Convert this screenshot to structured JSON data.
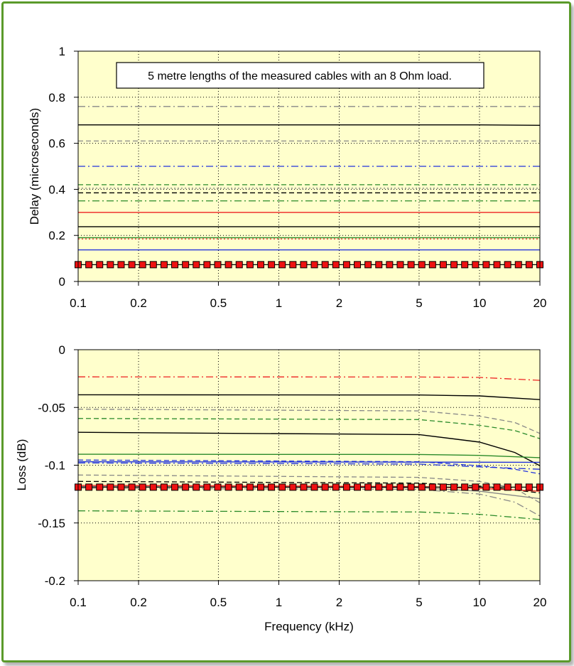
{
  "chart_data": [
    {
      "type": "line",
      "ylabel": "Delay (microseconds)",
      "xlabel": "",
      "x_scale": "log",
      "xlim": [
        0.1,
        20
      ],
      "ylim": [
        0,
        1
      ],
      "x_ticks": [
        "0.1",
        "0.2",
        "0.5",
        "1",
        "2",
        "5",
        "10",
        "20"
      ],
      "y_ticks": [
        "0",
        "0.2",
        "0.4",
        "0.6",
        "0.8",
        "1"
      ],
      "grid": true,
      "annotation": "5 metre lengths of the measured cables with an 8 Ohm load.",
      "series": [
        {
          "color": "#888888",
          "style": "dashdot",
          "values": [
            [
              0.1,
              0.76
            ],
            [
              20,
              0.76
            ]
          ]
        },
        {
          "color": "#000000",
          "style": "solid",
          "values": [
            [
              0.1,
              0.68
            ],
            [
              10,
              0.68
            ],
            [
              20,
              0.678
            ]
          ]
        },
        {
          "color": "#888888",
          "style": "dashed",
          "values": [
            [
              0.1,
              0.61
            ],
            [
              20,
              0.61
            ]
          ]
        },
        {
          "color": "#2233dd",
          "style": "dashdot",
          "values": [
            [
              0.1,
              0.5
            ],
            [
              20,
              0.5
            ]
          ]
        },
        {
          "color": "#2a8a2a",
          "style": "dashed",
          "values": [
            [
              0.1,
              0.42
            ],
            [
              20,
              0.42
            ]
          ]
        },
        {
          "color": "#888888",
          "style": "dotted",
          "values": [
            [
              0.1,
              0.405
            ],
            [
              20,
              0.405
            ]
          ]
        },
        {
          "color": "#000000",
          "style": "dashed",
          "values": [
            [
              0.1,
              0.385
            ],
            [
              20,
              0.385
            ]
          ]
        },
        {
          "color": "#2a8a2a",
          "style": "dashdot",
          "values": [
            [
              0.1,
              0.35
            ],
            [
              20,
              0.35
            ]
          ]
        },
        {
          "color": "#ee2222",
          "style": "solid",
          "values": [
            [
              0.1,
              0.3
            ],
            [
              20,
              0.3
            ]
          ]
        },
        {
          "color": "#000000",
          "style": "solid",
          "values": [
            [
              0.1,
              0.238
            ],
            [
              20,
              0.238
            ]
          ]
        },
        {
          "color": "#2a8a2a",
          "style": "solid",
          "values": [
            [
              0.1,
              0.19
            ],
            [
              20,
              0.19
            ]
          ]
        },
        {
          "color": "#ee2222",
          "style": "dotted",
          "values": [
            [
              0.1,
              0.185
            ],
            [
              20,
              0.185
            ]
          ]
        },
        {
          "color": "#2233dd",
          "style": "solid",
          "values": [
            [
              0.1,
              0.137
            ],
            [
              20,
              0.137
            ]
          ]
        },
        {
          "color": "#ee1111",
          "style": "markers",
          "values": [
            [
              0.1,
              0.073
            ],
            [
              20,
              0.073
            ]
          ]
        }
      ]
    },
    {
      "type": "line",
      "ylabel": "Loss (dB)",
      "xlabel": "Frequency (kHz)",
      "x_scale": "log",
      "xlim": [
        0.1,
        20
      ],
      "ylim": [
        -0.2,
        0
      ],
      "x_ticks": [
        "0.1",
        "0.2",
        "0.5",
        "1",
        "2",
        "5",
        "10",
        "20"
      ],
      "y_ticks": [
        "0",
        "-0.05",
        "-0.1",
        "-0.15",
        "-0.2"
      ],
      "grid": true,
      "series": [
        {
          "color": "#ee2222",
          "style": "dashdot",
          "values": [
            [
              0.1,
              -0.0235
            ],
            [
              5,
              -0.0236
            ],
            [
              10,
              -0.024
            ],
            [
              20,
              -0.0265
            ]
          ]
        },
        {
          "color": "#000000",
          "style": "solid",
          "values": [
            [
              0.1,
              -0.039
            ],
            [
              5,
              -0.0392
            ],
            [
              10,
              -0.04
            ],
            [
              20,
              -0.0432
            ]
          ]
        },
        {
          "color": "#888888",
          "style": "dashed",
          "values": [
            [
              0.1,
              -0.0515
            ],
            [
              5,
              -0.053
            ],
            [
              10,
              -0.0575
            ],
            [
              15,
              -0.063
            ],
            [
              20,
              -0.0725
            ]
          ]
        },
        {
          "color": "#2a8a2a",
          "style": "dashed",
          "values": [
            [
              0.1,
              -0.0595
            ],
            [
              5,
              -0.0605
            ],
            [
              10,
              -0.0655
            ],
            [
              15,
              -0.07
            ],
            [
              20,
              -0.077
            ]
          ]
        },
        {
          "color": "#000000",
          "style": "solid",
          "values": [
            [
              0.1,
              -0.0715
            ],
            [
              5,
              -0.0735
            ],
            [
              10,
              -0.08
            ],
            [
              15,
              -0.089
            ],
            [
              20,
              -0.1005
            ]
          ]
        },
        {
          "color": "#2a8a2a",
          "style": "solid",
          "values": [
            [
              0.1,
              -0.0905
            ],
            [
              5,
              -0.0907
            ],
            [
              10,
              -0.0915
            ],
            [
              20,
              -0.0935
            ]
          ]
        },
        {
          "color": "#2233dd",
          "style": "dashed",
          "values": [
            [
              0.1,
              -0.0955
            ],
            [
              5,
              -0.097
            ],
            [
              10,
              -0.1005
            ],
            [
              15,
              -0.1035
            ],
            [
              20,
              -0.1075
            ]
          ]
        },
        {
          "color": "#2233dd",
          "style": "solid",
          "values": [
            [
              0.1,
              -0.097
            ],
            [
              20,
              -0.0975
            ]
          ]
        },
        {
          "color": "#2233dd",
          "style": "dashdot",
          "values": [
            [
              0.1,
              -0.098
            ],
            [
              5,
              -0.099
            ],
            [
              10,
              -0.1015
            ],
            [
              20,
              -0.1035
            ]
          ]
        },
        {
          "color": "#888888",
          "style": "dashed",
          "values": [
            [
              0.1,
              -0.1085
            ],
            [
              5,
              -0.1105
            ],
            [
              10,
              -0.114
            ],
            [
              15,
              -0.12
            ],
            [
              20,
              -0.1325
            ]
          ]
        },
        {
          "color": "#000000",
          "style": "dashed",
          "values": [
            [
              0.1,
              -0.114
            ],
            [
              5,
              -0.1155
            ],
            [
              10,
              -0.118
            ],
            [
              20,
              -0.124
            ]
          ]
        },
        {
          "color": "#ee2222",
          "style": "solid",
          "values": [
            [
              0.1,
              -0.1175
            ],
            [
              5,
              -0.1185
            ],
            [
              10,
              -0.12
            ],
            [
              20,
              -0.1225
            ]
          ]
        },
        {
          "color": "#888888",
          "style": "solid",
          "values": [
            [
              0.1,
              -0.1185
            ],
            [
              5,
              -0.1195
            ],
            [
              10,
              -0.1225
            ],
            [
              20,
              -0.129
            ]
          ]
        },
        {
          "color": "#888888",
          "style": "dashdot",
          "values": [
            [
              0.1,
              -0.12
            ],
            [
              5,
              -0.121
            ],
            [
              10,
              -0.125
            ],
            [
              15,
              -0.132
            ],
            [
              20,
              -0.144
            ]
          ]
        },
        {
          "color": "#2a8a2a",
          "style": "dashdot",
          "values": [
            [
              0.1,
              -0.1395
            ],
            [
              5,
              -0.1405
            ],
            [
              10,
              -0.1425
            ],
            [
              20,
              -0.147
            ]
          ]
        },
        {
          "color": "#ee1111",
          "style": "markers",
          "values": [
            [
              0.1,
              -0.119
            ],
            [
              20,
              -0.119
            ]
          ]
        }
      ]
    }
  ]
}
